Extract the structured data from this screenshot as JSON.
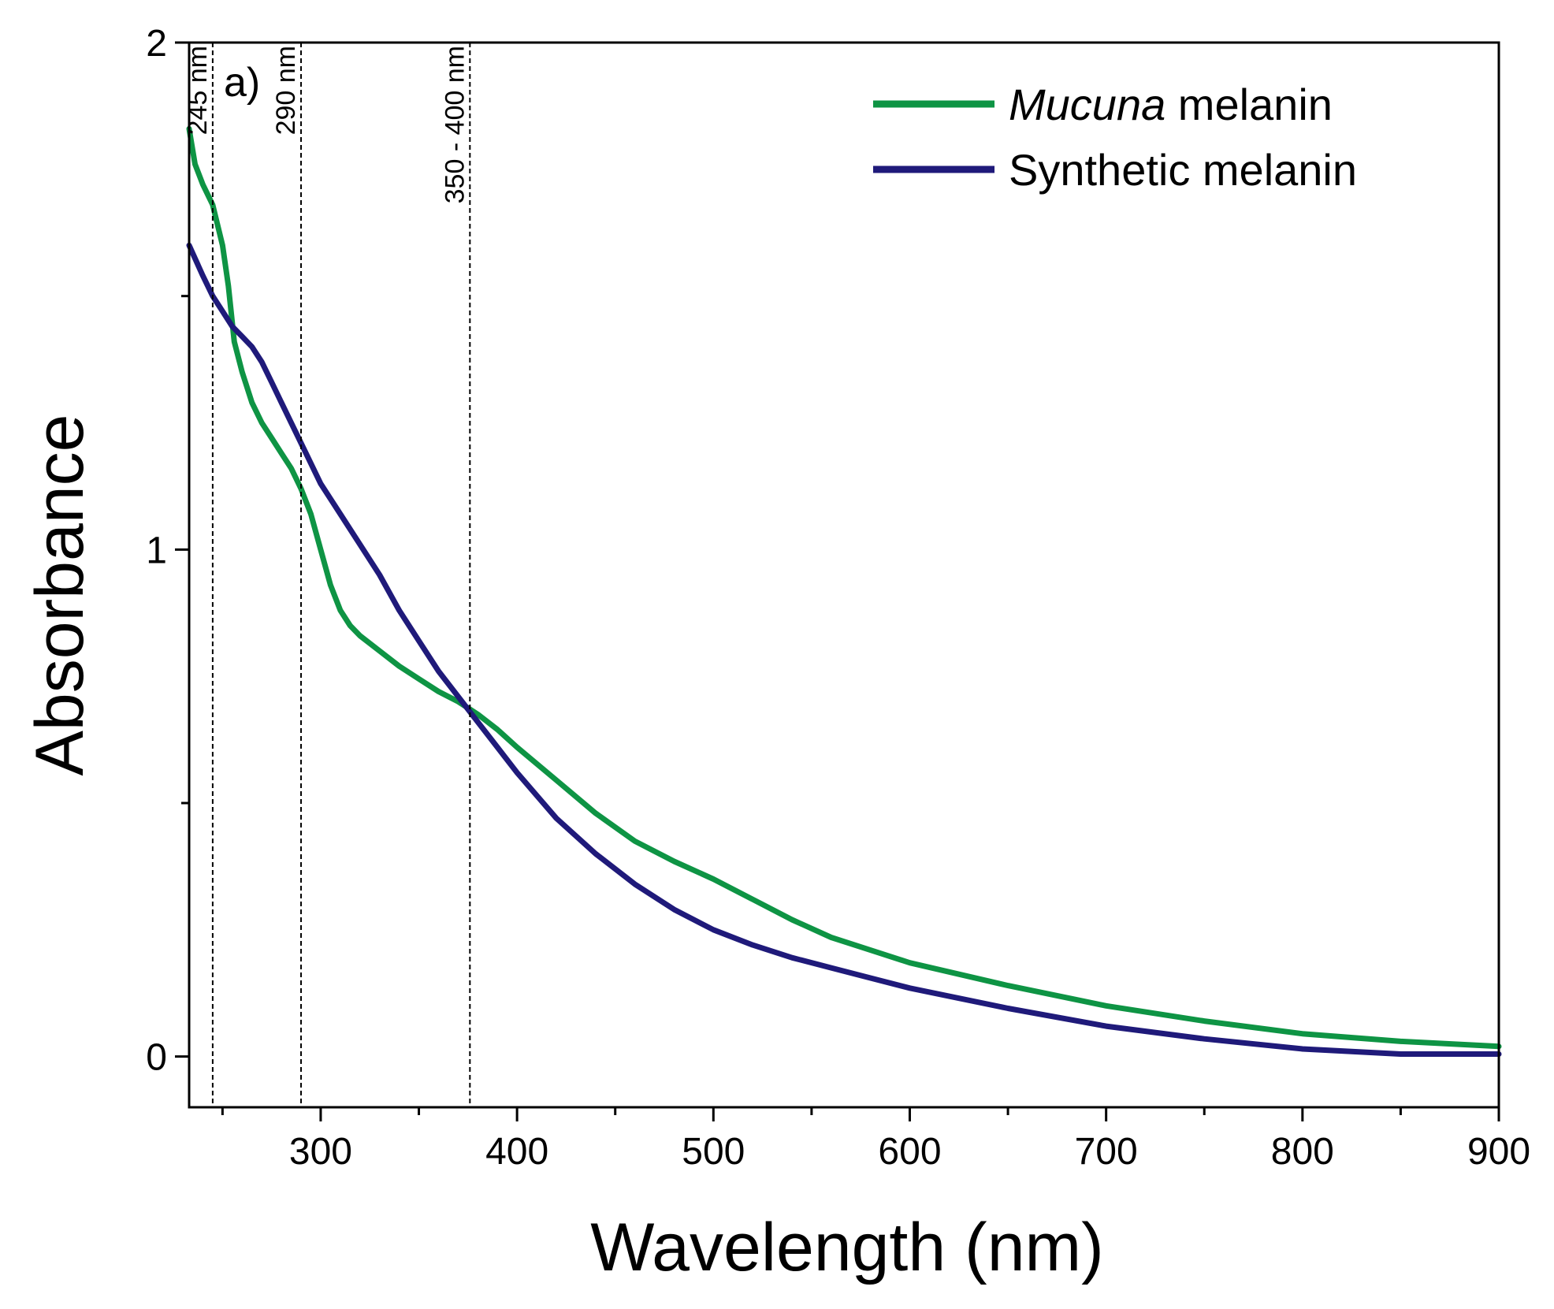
{
  "chart_data": {
    "type": "line",
    "panel_label": "a)",
    "xlabel": "Wavelength (nm)",
    "ylabel": "Absorbance",
    "xlim": [
      233,
      900
    ],
    "ylim": [
      -0.1,
      2
    ],
    "xticks_major": [
      300,
      400,
      500,
      600,
      700,
      800,
      900
    ],
    "xticks_minor": [
      250,
      350,
      450,
      550,
      650,
      750,
      850
    ],
    "yticks_major": [
      0,
      1,
      2
    ],
    "yticks_minor": [
      0.5,
      1.5
    ],
    "grid": false,
    "legend_position": "top-right",
    "reference_lines": [
      {
        "x": 245,
        "label": "245 nm"
      },
      {
        "x": 290,
        "label": "290 nm"
      },
      {
        "x": 376,
        "label": "350 - 400 nm"
      }
    ],
    "series": [
      {
        "name_italic": "Mucuna",
        "name_rest": " melanin",
        "color": "#0e9444",
        "x": [
          233,
          236,
          240,
          245,
          250,
          253,
          256,
          260,
          265,
          270,
          275,
          280,
          285,
          290,
          295,
          300,
          305,
          310,
          315,
          320,
          330,
          340,
          350,
          360,
          370,
          380,
          390,
          400,
          420,
          440,
          460,
          480,
          500,
          520,
          540,
          560,
          580,
          600,
          650,
          700,
          750,
          800,
          850,
          900
        ],
        "y": [
          1.83,
          1.76,
          1.72,
          1.68,
          1.6,
          1.52,
          1.41,
          1.35,
          1.29,
          1.25,
          1.22,
          1.19,
          1.16,
          1.12,
          1.07,
          1.0,
          0.93,
          0.88,
          0.85,
          0.83,
          0.8,
          0.77,
          0.745,
          0.72,
          0.7,
          0.675,
          0.645,
          0.61,
          0.545,
          0.48,
          0.425,
          0.385,
          0.35,
          0.31,
          0.27,
          0.235,
          0.21,
          0.185,
          0.14,
          0.1,
          0.07,
          0.045,
          0.03,
          0.02
        ]
      },
      {
        "name": "Synthetic melanin",
        "color": "#1f1a7a",
        "x": [
          233,
          240,
          245,
          250,
          255,
          260,
          265,
          270,
          275,
          280,
          290,
          300,
          310,
          320,
          330,
          340,
          350,
          360,
          370,
          380,
          390,
          400,
          420,
          440,
          460,
          480,
          500,
          520,
          540,
          560,
          580,
          600,
          650,
          700,
          750,
          800,
          850,
          900
        ],
        "y": [
          1.6,
          1.54,
          1.5,
          1.47,
          1.44,
          1.42,
          1.4,
          1.37,
          1.33,
          1.29,
          1.21,
          1.13,
          1.07,
          1.01,
          0.95,
          0.88,
          0.82,
          0.76,
          0.71,
          0.66,
          0.61,
          0.56,
          0.47,
          0.4,
          0.34,
          0.29,
          0.25,
          0.22,
          0.195,
          0.175,
          0.155,
          0.135,
          0.095,
          0.06,
          0.035,
          0.015,
          0.005,
          0.005
        ]
      }
    ]
  }
}
